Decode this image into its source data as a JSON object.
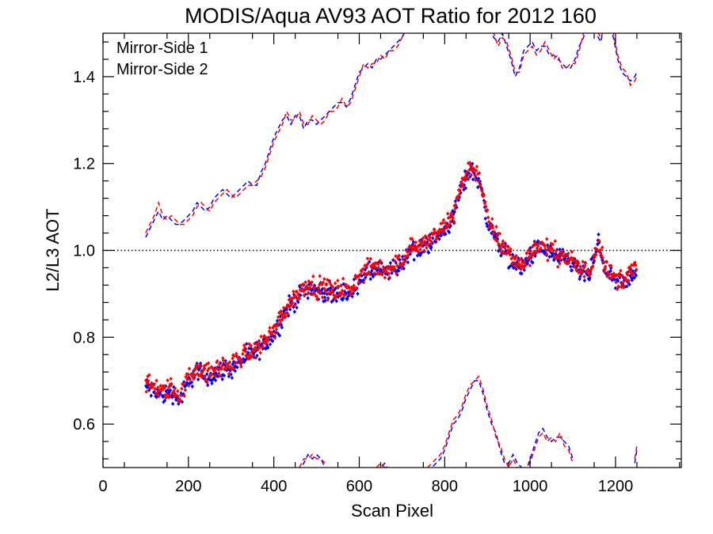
{
  "chart_data": {
    "type": "scatter",
    "title": "MODIS/Aqua AV93 AOT Ratio for 2012 160",
    "xlabel": "Scan Pixel",
    "ylabel": "L2/L3 AOT",
    "xlim": [
      0,
      1354
    ],
    "ylim": [
      0.5,
      1.5
    ],
    "xticks": [
      0,
      200,
      400,
      600,
      800,
      1000,
      1200
    ],
    "yticks": [
      0.6,
      0.8,
      1.0,
      1.2,
      1.4
    ],
    "xtick_labels": [
      "0",
      "200",
      "400",
      "600",
      "800",
      "1000",
      "1200"
    ],
    "ytick_labels": [
      "0.6",
      "0.8",
      "1.0",
      "1.2",
      "1.4"
    ],
    "reference_line": {
      "y": 1.0,
      "style": "dotted"
    },
    "legend_position": "top-left",
    "colors": {
      "mirror_side_1": "#0000ff",
      "mirror_side_2": "#ff0000"
    },
    "mean_curve": {
      "x": [
        100,
        120,
        140,
        160,
        180,
        200,
        220,
        240,
        260,
        280,
        300,
        320,
        340,
        360,
        380,
        400,
        420,
        440,
        460,
        480,
        500,
        520,
        540,
        560,
        580,
        600,
        620,
        640,
        660,
        680,
        700,
        720,
        740,
        760,
        780,
        800,
        820,
        840,
        860,
        880,
        900,
        920,
        940,
        960,
        980,
        1000,
        1020,
        1040,
        1060,
        1080,
        1100,
        1120,
        1140,
        1160,
        1180,
        1200,
        1220,
        1240,
        1250
      ],
      "y": [
        0.69,
        0.68,
        0.67,
        0.68,
        0.66,
        0.7,
        0.73,
        0.71,
        0.72,
        0.73,
        0.73,
        0.75,
        0.76,
        0.77,
        0.79,
        0.81,
        0.85,
        0.88,
        0.9,
        0.92,
        0.91,
        0.91,
        0.9,
        0.91,
        0.9,
        0.94,
        0.95,
        0.96,
        0.95,
        0.96,
        0.97,
        1.01,
        1.0,
        1.02,
        1.03,
        1.05,
        1.08,
        1.15,
        1.19,
        1.17,
        1.07,
        1.03,
        1.0,
        0.98,
        0.96,
        0.99,
        1.01,
        1.0,
        0.99,
        0.98,
        0.97,
        0.95,
        0.95,
        1.02,
        0.95,
        0.93,
        0.93,
        0.95,
        0.96
      ]
    },
    "series": [
      {
        "name": "Mirror-Side 1",
        "color": "#0000ff",
        "upper_bound": {
          "x": [
            100,
            110,
            120,
            130,
            140,
            150,
            160,
            170,
            180,
            190,
            200,
            210,
            220,
            230,
            240,
            250,
            260,
            270,
            280,
            290,
            300,
            310,
            320,
            330,
            340,
            350,
            360,
            370,
            380,
            390,
            400,
            410,
            420,
            430,
            440,
            450,
            460,
            470,
            480,
            490,
            500,
            510,
            520,
            530,
            540,
            550,
            560,
            570,
            580,
            590,
            600,
            610,
            620,
            630,
            640,
            650,
            660,
            670,
            680,
            690,
            700,
            710
          ],
          "y": [
            1.03,
            1.05,
            1.07,
            1.09,
            1.07,
            1.08,
            1.07,
            1.06,
            1.06,
            1.07,
            1.08,
            1.09,
            1.11,
            1.1,
            1.09,
            1.1,
            1.12,
            1.13,
            1.14,
            1.13,
            1.12,
            1.13,
            1.14,
            1.15,
            1.16,
            1.15,
            1.15,
            1.18,
            1.2,
            1.23,
            1.26,
            1.28,
            1.3,
            1.31,
            1.29,
            1.31,
            1.31,
            1.28,
            1.3,
            1.3,
            1.29,
            1.3,
            1.31,
            1.32,
            1.33,
            1.34,
            1.34,
            1.33,
            1.35,
            1.38,
            1.41,
            1.42,
            1.43,
            1.42,
            1.44,
            1.44,
            1.45,
            1.46,
            1.47,
            1.48,
            1.49,
            1.51
          ]
        },
        "upper_bound_right": {
          "x": [
            905,
            915,
            925,
            935,
            945,
            955,
            965,
            975,
            985,
            995,
            1005,
            1015,
            1025,
            1035,
            1045,
            1055,
            1065,
            1075,
            1085,
            1095,
            1105,
            1115,
            1125,
            1135,
            1145,
            1155,
            1165,
            1175,
            1185,
            1195,
            1205,
            1215,
            1225,
            1235,
            1245,
            1250
          ],
          "y": [
            1.51,
            1.49,
            1.48,
            1.5,
            1.47,
            1.44,
            1.4,
            1.42,
            1.46,
            1.47,
            1.48,
            1.46,
            1.47,
            1.47,
            1.45,
            1.45,
            1.44,
            1.43,
            1.42,
            1.42,
            1.44,
            1.47,
            1.49,
            1.52,
            1.51,
            1.5,
            1.48,
            1.52,
            1.52,
            1.49,
            1.44,
            1.41,
            1.4,
            1.39,
            1.4,
            1.41
          ]
        },
        "lower_bound": [
          {
            "x": [
              460,
              470,
              480,
              490,
              500,
              510,
              520
            ],
            "y": [
              0.49,
              0.51,
              0.53,
              0.52,
              0.53,
              0.52,
              0.5
            ]
          },
          {
            "x": [
              640,
              650,
              660,
              670
            ],
            "y": [
              0.49,
              0.5,
              0.51,
              0.49
            ]
          },
          {
            "x": [
              760,
              770,
              780,
              790,
              800,
              810,
              820,
              830,
              840,
              850,
              860,
              870,
              880,
              890,
              900,
              910,
              920,
              930,
              940,
              950,
              960,
              970,
              980,
              990,
              1000,
              1010,
              1020,
              1030,
              1040,
              1050,
              1060,
              1070,
              1080,
              1090,
              1100
            ],
            "y": [
              0.49,
              0.5,
              0.51,
              0.52,
              0.54,
              0.57,
              0.6,
              0.61,
              0.63,
              0.66,
              0.68,
              0.7,
              0.7,
              0.67,
              0.63,
              0.6,
              0.58,
              0.54,
              0.51,
              0.51,
              0.53,
              0.51,
              0.5,
              0.49,
              0.52,
              0.55,
              0.58,
              0.59,
              0.57,
              0.56,
              0.57,
              0.57,
              0.56,
              0.55,
              0.52
            ]
          },
          {
            "x": [
              1245,
              1250
            ],
            "y": [
              0.51,
              0.54
            ]
          }
        ]
      },
      {
        "name": "Mirror-Side 2",
        "color": "#ff0000",
        "upper_bound": {
          "x": [
            100,
            110,
            120,
            130,
            140,
            150,
            160,
            170,
            180,
            190,
            200,
            210,
            220,
            230,
            240,
            250,
            260,
            270,
            280,
            290,
            300,
            310,
            320,
            330,
            340,
            350,
            360,
            370,
            380,
            390,
            400,
            410,
            420,
            430,
            440,
            450,
            460,
            470,
            480,
            490,
            500,
            510,
            520,
            530,
            540,
            550,
            560,
            570,
            580,
            590,
            600,
            610,
            620,
            630,
            640,
            650,
            660,
            670,
            680,
            690,
            700,
            710
          ],
          "y": [
            1.04,
            1.06,
            1.08,
            1.11,
            1.08,
            1.07,
            1.08,
            1.07,
            1.06,
            1.06,
            1.07,
            1.08,
            1.1,
            1.11,
            1.1,
            1.09,
            1.11,
            1.12,
            1.13,
            1.14,
            1.13,
            1.12,
            1.13,
            1.14,
            1.15,
            1.15,
            1.16,
            1.17,
            1.19,
            1.22,
            1.25,
            1.27,
            1.29,
            1.32,
            1.3,
            1.3,
            1.32,
            1.29,
            1.29,
            1.31,
            1.3,
            1.29,
            1.3,
            1.32,
            1.32,
            1.33,
            1.35,
            1.33,
            1.34,
            1.37,
            1.4,
            1.43,
            1.42,
            1.43,
            1.43,
            1.45,
            1.44,
            1.46,
            1.46,
            1.47,
            1.49,
            1.52
          ]
        },
        "upper_bound_right": {
          "x": [
            905,
            915,
            925,
            935,
            945,
            955,
            965,
            975,
            985,
            995,
            1005,
            1015,
            1025,
            1035,
            1045,
            1055,
            1065,
            1075,
            1085,
            1095,
            1105,
            1115,
            1125,
            1135,
            1145,
            1155,
            1165,
            1175,
            1185,
            1195,
            1205,
            1215,
            1225,
            1235,
            1245,
            1250
          ],
          "y": [
            1.52,
            1.5,
            1.47,
            1.49,
            1.48,
            1.45,
            1.41,
            1.41,
            1.45,
            1.46,
            1.47,
            1.45,
            1.46,
            1.48,
            1.46,
            1.44,
            1.45,
            1.42,
            1.42,
            1.43,
            1.43,
            1.46,
            1.5,
            1.51,
            1.52,
            1.51,
            1.49,
            1.51,
            1.51,
            1.5,
            1.45,
            1.42,
            1.41,
            1.38,
            1.39,
            1.4
          ]
        },
        "lower_bound": [
          {
            "x": [
              460,
              470,
              480,
              490,
              500,
              510,
              520
            ],
            "y": [
              0.5,
              0.52,
              0.52,
              0.53,
              0.52,
              0.52,
              0.51
            ]
          },
          {
            "x": [
              640,
              650,
              660,
              670
            ],
            "y": [
              0.5,
              0.51,
              0.5,
              0.49
            ]
          },
          {
            "x": [
              760,
              770,
              780,
              790,
              800,
              810,
              820,
              830,
              840,
              850,
              860,
              870,
              880,
              890,
              900,
              910,
              920,
              930,
              940,
              950,
              960,
              970,
              980,
              990,
              1000,
              1010,
              1020,
              1030,
              1040,
              1050,
              1060,
              1070,
              1080,
              1090,
              1100
            ],
            "y": [
              0.5,
              0.51,
              0.52,
              0.53,
              0.55,
              0.58,
              0.61,
              0.62,
              0.64,
              0.67,
              0.69,
              0.7,
              0.71,
              0.68,
              0.64,
              0.61,
              0.57,
              0.55,
              0.52,
              0.5,
              0.52,
              0.5,
              0.49,
              0.5,
              0.51,
              0.54,
              0.57,
              0.58,
              0.56,
              0.57,
              0.56,
              0.58,
              0.55,
              0.54,
              0.51
            ]
          },
          {
            "x": [
              1245,
              1250
            ],
            "y": [
              0.52,
              0.55
            ]
          }
        ]
      }
    ]
  }
}
